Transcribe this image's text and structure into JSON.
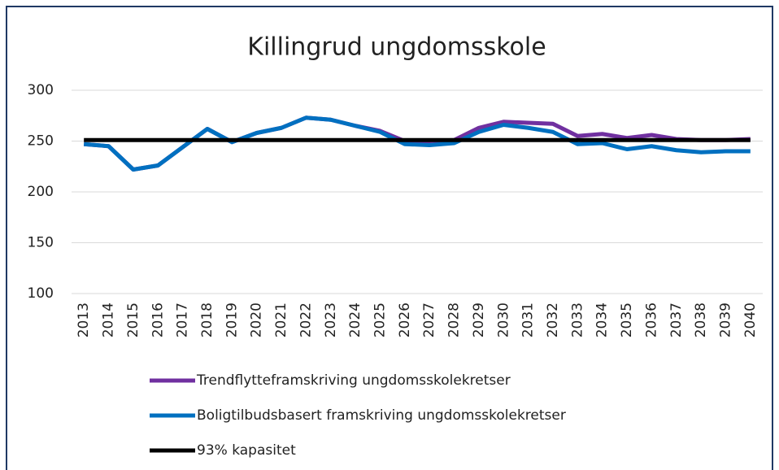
{
  "chart_data": {
    "type": "line",
    "title": "Killingrud ungdomsskole",
    "categories": [
      "2013",
      "2014",
      "2015",
      "2016",
      "2017",
      "2018",
      "2019",
      "2020",
      "2021",
      "2022",
      "2023",
      "2024",
      "2025",
      "2026",
      "2027",
      "2028",
      "2029",
      "2030",
      "2031",
      "2032",
      "2033",
      "2034",
      "2035",
      "2036",
      "2037",
      "2038",
      "2039",
      "2040"
    ],
    "series": [
      {
        "name": "Trendflytteframskriving ungdomsskolekretser",
        "color": "#7030a0",
        "values": [
          247,
          245,
          222,
          226,
          244,
          262,
          249,
          258,
          263,
          273,
          271,
          265,
          260,
          250,
          250,
          251,
          263,
          269,
          268,
          267,
          255,
          257,
          253,
          256,
          252,
          251,
          251,
          252
        ]
      },
      {
        "name": "Boligtilbudsbasert framskriving ungdomsskolekretser",
        "color": "#0070c0",
        "values": [
          247,
          245,
          222,
          226,
          244,
          262,
          249,
          258,
          263,
          273,
          271,
          265,
          259,
          247,
          246,
          248,
          259,
          266,
          263,
          259,
          247,
          248,
          242,
          245,
          241,
          239,
          240,
          240
        ]
      },
      {
        "name": "93% kapasitet",
        "color": "#000000",
        "values": [
          251,
          251,
          251,
          251,
          251,
          251,
          251,
          251,
          251,
          251,
          251,
          251,
          251,
          251,
          251,
          251,
          251,
          251,
          251,
          251,
          251,
          251,
          251,
          251,
          251,
          251,
          251,
          251
        ]
      }
    ],
    "ylim": [
      100,
      300
    ],
    "yticks": [
      100,
      150,
      200,
      250,
      300
    ],
    "grid": true
  }
}
